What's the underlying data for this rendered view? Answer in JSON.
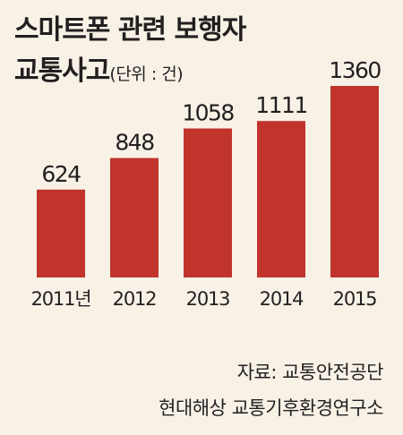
{
  "title_line1": "스마트폰 관련 보행자",
  "title_line2": "교통사고",
  "unit_text": "(단위 : 건)",
  "source_line1": "자료: 교통안전공단",
  "source_line2": "현대해상 교통기후환경연구소",
  "colors": {
    "bar": "#c0342c",
    "background": "#f7f1e6",
    "text": "#231f20"
  },
  "chart_data": {
    "type": "bar",
    "title": "스마트폰 관련 보행자 교통사고",
    "unit": "(단위 : 건)",
    "categories": [
      "2011년",
      "2012",
      "2013",
      "2014",
      "2015"
    ],
    "values": [
      624,
      848,
      1058,
      1111,
      1360
    ],
    "value_labels": [
      "624",
      "848",
      "1058",
      "1111",
      "1360"
    ],
    "xlabel": "",
    "ylabel": "",
    "ylim": [
      0,
      1360
    ],
    "grid": false,
    "legend": "none"
  }
}
